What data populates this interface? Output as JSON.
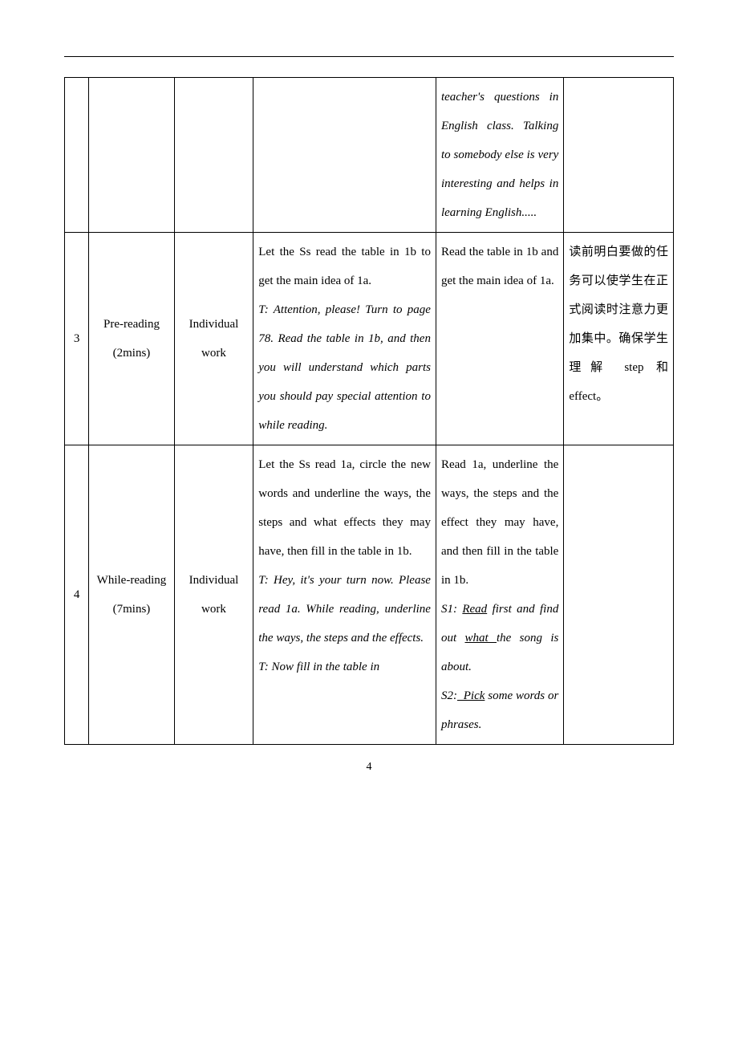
{
  "pageNumber": "4",
  "rows": [
    {
      "num": "",
      "stage": "",
      "mode": "",
      "teacher": "",
      "student_html": "<span class='ital justify'>teacher's questions in English class. Talking to somebody else is very interesting and helps in learning English.....</span>",
      "note": ""
    },
    {
      "num": "3",
      "stage": "Pre-reading (2mins)",
      "mode": "Individual work",
      "teacher_html": "Let the Ss read the table in 1b to get the main idea of 1a.<br><span class='ital'>T: Attention, please! Turn to page 78. Read the table in 1b, and then you will understand which parts you should pay special attention to while reading.</span>",
      "student_html": "<span class='tight'>Read the table in 1b and get the main idea of 1a.</span>",
      "note": "读前明白要做的任务可以使学生在正式阅读时注意力更加集中。确保学生理解 step 和 effect。"
    },
    {
      "num": "4",
      "stage": "While-reading (7mins)",
      "mode": "Individual work",
      "teacher_html": "Let the Ss read 1a, circle the new words and underline the ways, the steps and what effects they may have, then fill in the table in 1b.<br><span class='ital'>T: Hey, it's your turn now. Please read 1a. While reading, underline the ways, the steps and the effects.</span><br><span class='ital'>T: Now fill in the table in</span>",
      "student_html": "Read 1a, underline the ways, the steps and the effect they may have, and then fill in the table in 1b.<br><span class='ital'>S1: <span class='u'>Read</span> first and find out <span class='u'>what </span>the song is about.</span><br><span class='ital'>S2:<span class='u'>&nbsp;&nbsp;Pick</span> some words or phrases.</span>",
      "note": ""
    }
  ]
}
